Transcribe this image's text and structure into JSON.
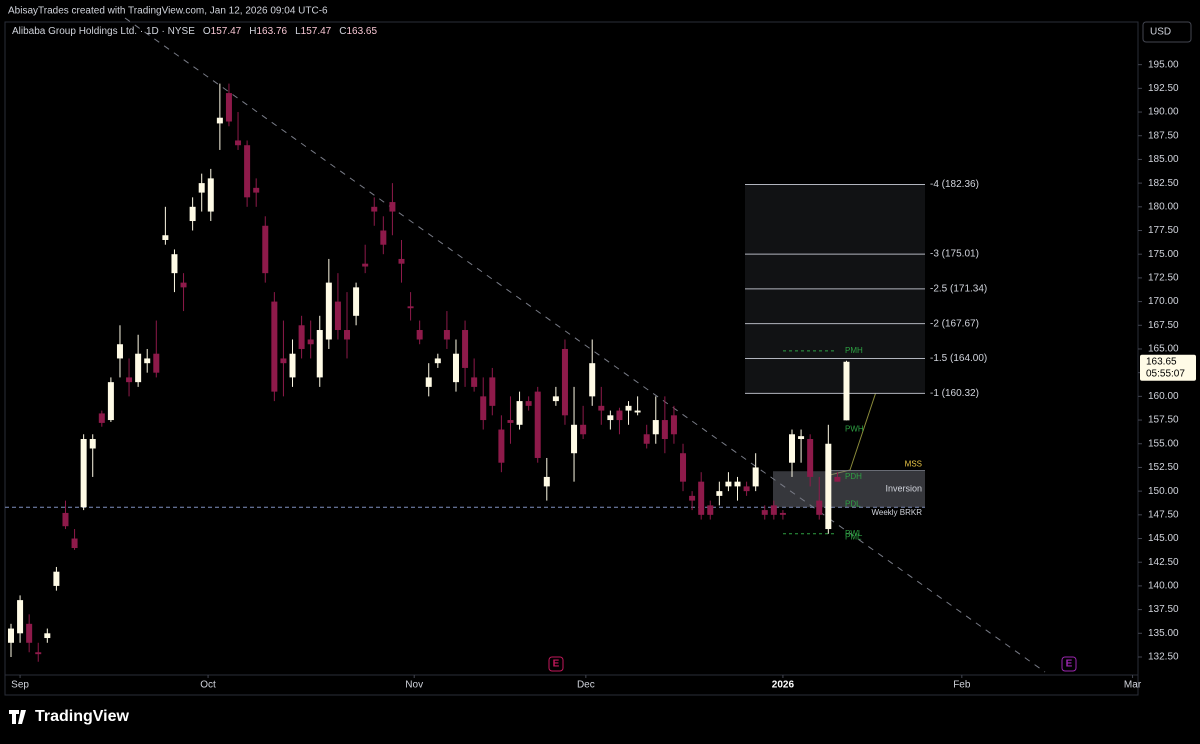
{
  "header": {
    "credit": "AbisayTrades created with TradingView.com, Jan 12, 2026 09:04 UTC-6",
    "symbol": "Alibaba Group Holdings Ltd. · 1D · NYSE",
    "open_label": "O",
    "high_label": "H",
    "low_label": "L",
    "close_label": "C",
    "currency": "USD",
    "countdown": "05:55:07"
  },
  "footer": {
    "brand": "TradingView"
  },
  "chart_data": {
    "type": "candlestick",
    "up_color": "#fffbe6",
    "down_color": "#8e1a4a",
    "x": [
      0,
      1,
      2,
      3,
      4,
      5,
      6,
      7,
      8,
      9,
      10,
      11,
      12,
      13,
      14,
      15,
      16,
      17,
      18,
      19,
      20,
      21,
      22,
      23,
      24,
      25,
      26,
      27,
      28,
      29,
      30,
      31,
      32,
      33,
      34,
      35,
      36,
      37,
      38,
      39,
      40,
      41,
      42,
      43,
      44,
      45,
      46,
      47,
      48,
      49,
      50,
      51,
      52,
      53,
      54,
      55,
      56,
      57,
      58,
      59,
      60,
      61,
      62,
      63,
      64,
      65,
      66,
      67,
      68,
      69,
      70,
      71,
      72,
      73,
      74,
      75,
      76,
      77,
      78,
      79,
      80,
      81,
      82,
      83,
      84,
      85,
      86,
      87,
      88,
      89,
      90,
      91,
      92
    ],
    "open": [
      134,
      135,
      136,
      133,
      134.5,
      140,
      147.7,
      145,
      148.3,
      154.5,
      158.2,
      157.5,
      164,
      162,
      161.5,
      163.5,
      164.5,
      176.5,
      173,
      172,
      178.5,
      181.5,
      179.5,
      188.8,
      192,
      187,
      186.5,
      182,
      178,
      170,
      164,
      162,
      167.5,
      166,
      162,
      166,
      170,
      167,
      168.5,
      174,
      180,
      177.5,
      180.5,
      174.5,
      169.5,
      167,
      161,
      163.5,
      167,
      161.5,
      167,
      162,
      160,
      162,
      156.5,
      157.5,
      157,
      159.5,
      160.5,
      150.5,
      159.5,
      165,
      154,
      157,
      160,
      159,
      157.5,
      158.5,
      158.5,
      158.3,
      156,
      156,
      157.5,
      158,
      154,
      149.5,
      151,
      148.5,
      149.5,
      150.5,
      150.5,
      150.5,
      150.5,
      148,
      148.5,
      147.7,
      153,
      155.5,
      155.5,
      149,
      146,
      151.5,
      157.47
    ],
    "high": [
      136,
      139,
      137,
      134,
      135.5,
      142,
      149,
      146,
      156,
      156,
      158.5,
      162,
      167.5,
      164,
      166.5,
      165,
      168,
      180,
      175.5,
      173,
      181,
      183.5,
      184,
      193,
      193,
      190,
      187,
      183,
      179,
      171,
      168,
      166,
      168.5,
      168,
      168.5,
      174.5,
      173,
      171,
      172,
      176,
      181,
      179,
      182.5,
      176.5,
      171,
      168,
      163.5,
      164.5,
      169,
      166,
      168,
      164,
      162,
      163,
      158,
      160,
      160.5,
      160,
      161,
      153.5,
      161,
      166,
      161,
      159,
      166,
      161,
      158.5,
      158.8,
      159.5,
      160,
      157,
      160,
      160,
      159,
      155,
      150,
      152,
      149,
      151,
      152,
      151.5,
      151,
      154,
      148.5,
      149,
      148,
      156.5,
      156.5,
      156,
      151.5,
      157,
      152,
      163.76
    ],
    "low": [
      132.5,
      134,
      133,
      132,
      134,
      139.5,
      146,
      143.8,
      148,
      151.5,
      156.8,
      157.3,
      162,
      160,
      161,
      162.5,
      162,
      176,
      171,
      169,
      177.5,
      179.5,
      178.5,
      186,
      188.5,
      186,
      180,
      180,
      172,
      159.5,
      160,
      161,
      164,
      164,
      161,
      165,
      166,
      164,
      167.5,
      173,
      178,
      175,
      177,
      172,
      168,
      165.5,
      160,
      163,
      165,
      160.5,
      161,
      160.5,
      156.5,
      158,
      152,
      155,
      156.5,
      158.5,
      153,
      149,
      159,
      157,
      151,
      155.5,
      159,
      157,
      156.5,
      156,
      157,
      158,
      154.5,
      155,
      154,
      155,
      150,
      148,
      147,
      147,
      148.5,
      150,
      149,
      149.5,
      150,
      147,
      147,
      147,
      151.5,
      153,
      150.5,
      147,
      145.5,
      151,
      157.47
    ],
    "close": [
      135.5,
      138.5,
      134,
      132.8,
      135,
      141.5,
      146.3,
      144,
      155.5,
      155.5,
      157.2,
      161.5,
      165.5,
      161.5,
      164.5,
      164,
      162.5,
      177,
      175,
      171.5,
      180,
      182.5,
      183,
      189.4,
      189,
      186.5,
      181,
      181.5,
      173,
      160.5,
      163.5,
      164.5,
      165,
      165.5,
      167,
      172,
      167,
      166,
      171.5,
      173.7,
      179.5,
      176,
      179.5,
      174,
      169.3,
      166,
      162,
      164,
      166,
      164.5,
      163,
      161,
      157.5,
      159,
      153,
      157.2,
      159.5,
      159,
      153.5,
      151.5,
      160,
      158,
      157,
      156,
      163.5,
      158.5,
      158,
      157.5,
      159,
      158.5,
      155,
      157.5,
      155.5,
      156,
      151,
      149,
      147.5,
      147.5,
      150,
      151,
      151,
      150,
      152.5,
      147.5,
      147.5,
      147.5,
      156,
      155.8,
      151.5,
      147.5,
      155,
      151,
      163.65
    ],
    "xlim": [
      -0.66,
      124.1
    ],
    "xticks": [
      {
        "value": 1,
        "label": "Sep"
      },
      {
        "value": 21.7,
        "label": "Oct"
      },
      {
        "value": 44.4,
        "label": "Nov"
      },
      {
        "value": 63.3,
        "label": "Dec"
      },
      {
        "value": 85,
        "label": "2026"
      },
      {
        "value": 104.7,
        "label": "Feb"
      },
      {
        "value": 123.5,
        "label": "Mar"
      }
    ],
    "ylim": [
      130.6,
      199.5
    ],
    "yticks": [
      {
        "value": 132.5,
        "label": "132.50"
      },
      {
        "value": 135,
        "label": "135.00"
      },
      {
        "value": 137.5,
        "label": "137.50"
      },
      {
        "value": 140,
        "label": "140.00"
      },
      {
        "value": 142.5,
        "label": "142.50"
      },
      {
        "value": 145,
        "label": "145.00"
      },
      {
        "value": 147.5,
        "label": "147.50"
      },
      {
        "value": 150,
        "label": "150.00"
      },
      {
        "value": 152.5,
        "label": "152.50"
      },
      {
        "value": 155,
        "label": "155.00"
      },
      {
        "value": 157.5,
        "label": "157.50"
      },
      {
        "value": 160,
        "label": "160.00"
      },
      {
        "value": 162.5,
        "label": "162.50"
      },
      {
        "value": 165,
        "label": "165.00"
      },
      {
        "value": 167.5,
        "label": "167.50"
      },
      {
        "value": 170,
        "label": "170.00"
      },
      {
        "value": 172.5,
        "label": "172.50"
      },
      {
        "value": 175,
        "label": "175.00"
      },
      {
        "value": 177.5,
        "label": "177.50"
      },
      {
        "value": 180,
        "label": "180.00"
      },
      {
        "value": 182.5,
        "label": "182.50"
      },
      {
        "value": 185,
        "label": "185.00"
      },
      {
        "value": 187.5,
        "label": "187.50"
      },
      {
        "value": 190,
        "label": "190.00"
      },
      {
        "value": 192.5,
        "label": "192.50"
      },
      {
        "value": 195,
        "label": "195.00"
      }
    ],
    "fib_levels": [
      {
        "value": 182.36,
        "label": "-4 (182.36)"
      },
      {
        "value": 175.01,
        "label": "-3 (175.01)"
      },
      {
        "value": 171.34,
        "label": "-2.5 (171.34)"
      },
      {
        "value": 167.67,
        "label": "-2 (167.67)"
      },
      {
        "value": 164.0,
        "label": "-1.5 (164.00)"
      },
      {
        "value": 160.32,
        "label": "-1 (160.32)"
      }
    ],
    "zones": [
      {
        "text": "Inversion",
        "from": 148.3,
        "to": 152.1
      }
    ],
    "annotations": [
      {
        "text": "PMH",
        "value": 164.8,
        "color": "#2ea043"
      },
      {
        "text": "PWH",
        "value": 156.5,
        "color": "#2ea043"
      },
      {
        "text": "MSS",
        "value": 152.8,
        "color": "#e8c547"
      },
      {
        "text": "PDH",
        "value": 151.5,
        "color": "#2ea043"
      },
      {
        "text": "PDL",
        "value": 148.6,
        "color": "#2ea043"
      },
      {
        "text": "Weekly BRKR",
        "value": 147.7,
        "color": "#d1d4dc"
      },
      {
        "text": "PWL",
        "value": 145.5,
        "color": "#2ea043"
      },
      {
        "text": "PML",
        "value": 145.1,
        "color": "#2ea043"
      }
    ],
    "weekly_level": 148.3
  }
}
